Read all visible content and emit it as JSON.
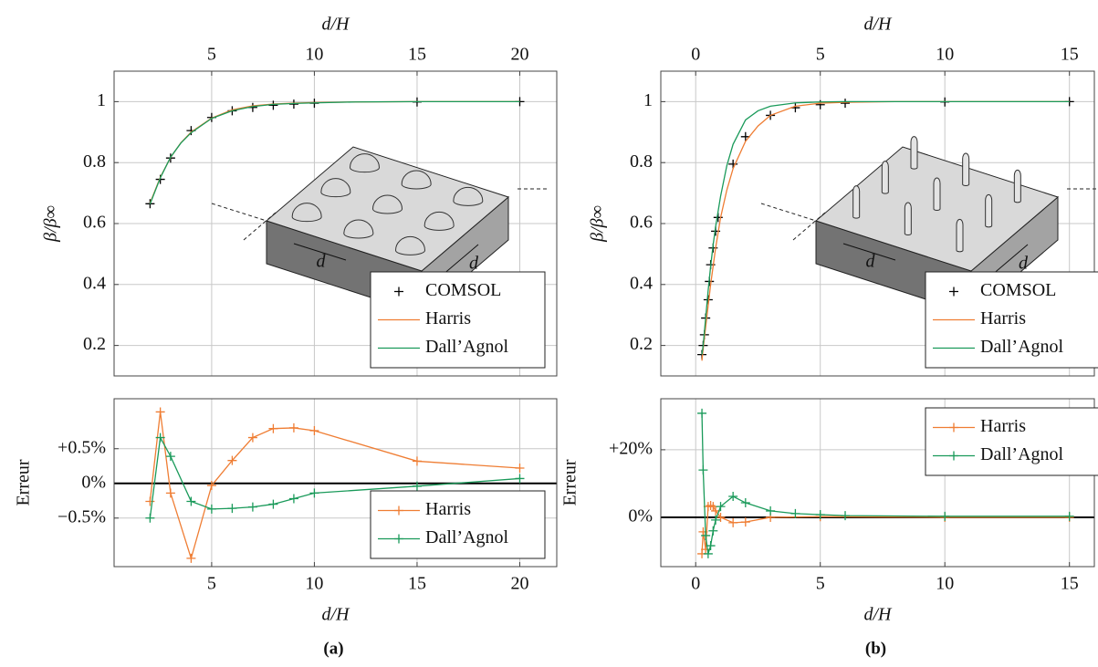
{
  "chart_data": [
    {
      "type": "line",
      "xlabel": "d/H",
      "ylabel": "β/β∞",
      "xaxis_position": "top",
      "xlim": [
        0.25,
        21.8
      ],
      "ylim": [
        0.1,
        1.1
      ],
      "xticks": [
        5,
        10,
        15,
        20
      ],
      "yticks": [
        0.2,
        0.4,
        0.6,
        0.8,
        1
      ],
      "grid": true,
      "legend": "lower right",
      "inset_labels": [
        "d",
        "d"
      ],
      "series": [
        {
          "name": "COMSOL",
          "color": "#000000",
          "line": false,
          "marker": "+",
          "x": [
            2,
            2.5,
            3,
            4,
            5,
            6,
            7,
            8,
            9,
            10,
            15,
            20
          ],
          "values": [
            0.665,
            0.745,
            0.815,
            0.905,
            0.948,
            0.97,
            0.981,
            0.988,
            0.992,
            0.995,
            0.999,
            1.0
          ]
        },
        {
          "name": "Harris",
          "color": "#ef7d33",
          "line": true,
          "marker": "none",
          "x": [
            2,
            2.5,
            3,
            3.5,
            4,
            5,
            6,
            7,
            8,
            9,
            10,
            12,
            15,
            20
          ],
          "values": [
            0.667,
            0.752,
            0.817,
            0.865,
            0.9,
            0.946,
            0.973,
            0.986,
            0.992,
            0.995,
            0.997,
            0.999,
            1.0,
            1.0
          ]
        },
        {
          "name": "Dall’Agnol",
          "color": "#1a9a5a",
          "line": true,
          "marker": "none",
          "x": [
            2,
            2.5,
            3,
            3.5,
            4,
            5,
            6,
            7,
            8,
            9,
            10,
            12,
            15,
            20
          ],
          "values": [
            0.664,
            0.75,
            0.818,
            0.864,
            0.898,
            0.945,
            0.97,
            0.984,
            0.991,
            0.994,
            0.996,
            0.999,
            1.0,
            1.0
          ]
        }
      ]
    },
    {
      "type": "line",
      "xlabel": "d/H",
      "ylabel": "Erreur",
      "xaxis_position": "bottom",
      "caption": "(a)",
      "xlim": [
        0.25,
        21.8
      ],
      "ylim": [
        -1.2,
        1.22
      ],
      "xticks": [
        5,
        10,
        15,
        20
      ],
      "yticks": [
        {
          "value": -0.5,
          "label": "−0.5%"
        },
        {
          "value": 0,
          "label": "0%"
        },
        {
          "value": 0.5,
          "label": "+0.5%"
        }
      ],
      "grid": true,
      "zero_line": true,
      "legend": "lower right",
      "series": [
        {
          "name": "Harris",
          "color": "#ef7d33",
          "line": true,
          "marker": "+",
          "x": [
            2,
            2.5,
            3,
            4,
            5,
            6,
            7,
            8,
            9,
            10,
            15,
            20
          ],
          "values": [
            -0.26,
            1.03,
            -0.14,
            -1.08,
            -0.03,
            0.33,
            0.66,
            0.79,
            0.8,
            0.76,
            0.32,
            0.22
          ]
        },
        {
          "name": "Dall’Agnol",
          "color": "#1a9a5a",
          "line": true,
          "marker": "+",
          "x": [
            2,
            2.5,
            3,
            4,
            5,
            6,
            7,
            8,
            9,
            10,
            15,
            20
          ],
          "values": [
            -0.5,
            0.66,
            0.39,
            -0.26,
            -0.37,
            -0.36,
            -0.34,
            -0.3,
            -0.22,
            -0.14,
            -0.04,
            0.07
          ]
        }
      ]
    },
    {
      "type": "line",
      "xlabel": "d/H",
      "ylabel": "β/β∞",
      "xaxis_position": "top",
      "xlim": [
        -1.4,
        16
      ],
      "ylim": [
        0.1,
        1.1
      ],
      "xticks": [
        0,
        5,
        10,
        15
      ],
      "yticks": [
        0.2,
        0.4,
        0.6,
        0.8,
        1
      ],
      "grid": true,
      "legend": "lower right",
      "inset_labels": [
        "d",
        "d"
      ],
      "series": [
        {
          "name": "COMSOL",
          "color": "#000000",
          "line": false,
          "marker": "+",
          "x": [
            0.25,
            0.3,
            0.35,
            0.4,
            0.5,
            0.55,
            0.6,
            0.7,
            0.8,
            0.9,
            1.5,
            2,
            3,
            4,
            5,
            6,
            10,
            15
          ],
          "values": [
            0.17,
            0.2,
            0.235,
            0.29,
            0.35,
            0.41,
            0.465,
            0.52,
            0.575,
            0.62,
            0.795,
            0.885,
            0.955,
            0.98,
            0.99,
            0.995,
            0.999,
            1.0
          ]
        },
        {
          "name": "Harris",
          "color": "#ef7d33",
          "line": true,
          "marker": "none",
          "x": [
            0.25,
            0.3,
            0.4,
            0.5,
            0.6,
            0.7,
            0.8,
            0.9,
            1,
            1.25,
            1.5,
            2,
            2.5,
            3,
            4,
            5,
            6,
            8,
            10,
            15
          ],
          "values": [
            0.15,
            0.19,
            0.26,
            0.33,
            0.4,
            0.46,
            0.52,
            0.57,
            0.62,
            0.71,
            0.78,
            0.87,
            0.92,
            0.955,
            0.985,
            0.995,
            0.998,
            1.0,
            1.0,
            1.0
          ]
        },
        {
          "name": "Dall’Agnol",
          "color": "#1a9a5a",
          "line": true,
          "marker": "none",
          "x": [
            0.25,
            0.3,
            0.4,
            0.5,
            0.6,
            0.7,
            0.8,
            0.9,
            1,
            1.25,
            1.5,
            2,
            2.5,
            3,
            4,
            5,
            6,
            8,
            10,
            15
          ],
          "values": [
            0.17,
            0.2,
            0.29,
            0.38,
            0.46,
            0.53,
            0.59,
            0.64,
            0.69,
            0.79,
            0.86,
            0.94,
            0.97,
            0.985,
            0.996,
            0.999,
            1.0,
            1.0,
            1.0,
            1.0
          ]
        }
      ]
    },
    {
      "type": "line",
      "xlabel": "d/H",
      "ylabel": "Erreur",
      "xaxis_position": "bottom",
      "caption": "(b)",
      "xlim": [
        -1.4,
        16
      ],
      "ylim": [
        -14.6,
        35.1
      ],
      "xticks": [
        0,
        5,
        10,
        15
      ],
      "yticks": [
        {
          "value": 0,
          "label": "0%"
        },
        {
          "value": 20,
          "label": "+20%"
        }
      ],
      "grid": true,
      "zero_line": true,
      "legend": "upper right",
      "series": [
        {
          "name": "Harris",
          "color": "#ef7d33",
          "line": true,
          "marker": "+",
          "x": [
            0.25,
            0.3,
            0.4,
            0.5,
            0.6,
            0.7,
            0.8,
            1,
            1.5,
            2,
            3,
            5,
            10,
            15
          ],
          "values": [
            -10.8,
            -4.3,
            -9.5,
            3.2,
            3.5,
            3.2,
            1.9,
            0,
            -1.6,
            -1.4,
            0,
            0.2,
            0,
            0
          ]
        },
        {
          "name": "Dall’Agnol",
          "color": "#1a9a5a",
          "line": true,
          "marker": "+",
          "x": [
            0.25,
            0.3,
            0.4,
            0.5,
            0.6,
            0.7,
            0.8,
            1,
            1.5,
            2,
            3,
            4,
            5,
            6,
            10,
            15
          ],
          "values": [
            30.8,
            14,
            -5.4,
            -10.8,
            -8.4,
            -4,
            -0.8,
            3.2,
            6.2,
            4.3,
            1.9,
            1.1,
            0.8,
            0.5,
            0.3,
            0.3
          ]
        }
      ]
    }
  ]
}
